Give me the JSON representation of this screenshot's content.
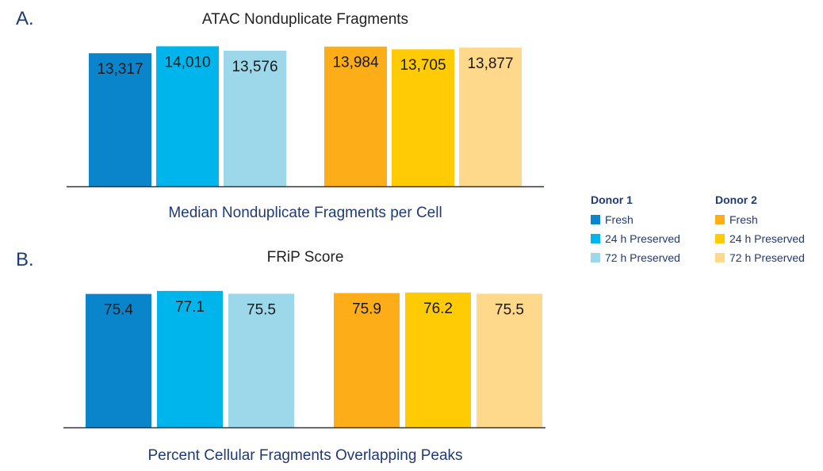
{
  "chart_data": [
    {
      "type": "bar",
      "panel": "A.",
      "title": "ATAC Nonduplicate Fragments",
      "xlabel": "Median Nonduplicate Fragments per Cell",
      "categories": [
        "Fresh",
        "24 h Preserved",
        "72 h Preserved"
      ],
      "groups": [
        "Donor 1",
        "Donor 2"
      ],
      "series": [
        {
          "group": "Donor 1",
          "values": [
            13317,
            14010,
            13576
          ],
          "labels": [
            "13,317",
            "14,010",
            "13,576"
          ]
        },
        {
          "group": "Donor 2",
          "values": [
            13984,
            13705,
            13877
          ],
          "labels": [
            "13,984",
            "13,705",
            "13,877"
          ]
        }
      ],
      "ylim": [
        0,
        14200
      ],
      "grid": false
    },
    {
      "type": "bar",
      "panel": "B.",
      "title": "FRiP Score",
      "xlabel": "Percent Cellular Fragments Overlapping Peaks",
      "categories": [
        "Fresh",
        "24 h Preserved",
        "72 h Preserved"
      ],
      "groups": [
        "Donor 1",
        "Donor 2"
      ],
      "series": [
        {
          "group": "Donor 1",
          "values": [
            75.4,
            77.1,
            75.5
          ],
          "labels": [
            "75.4",
            "77.1",
            "75.5"
          ]
        },
        {
          "group": "Donor 2",
          "values": [
            75.9,
            76.2,
            75.5
          ],
          "labels": [
            "75.9",
            "76.2",
            "75.5"
          ]
        }
      ],
      "ylim": [
        0,
        77.5
      ],
      "grid": false
    }
  ],
  "legend": {
    "placement": "right",
    "groups": [
      {
        "title": "Donor 1",
        "items": [
          {
            "label": "Fresh",
            "color": "#0a85cc"
          },
          {
            "label": "24 h Preserved",
            "color": "#00b4ec"
          },
          {
            "label": "72 h Preserved",
            "color": "#9cd8ea"
          }
        ]
      },
      {
        "title": "Donor 2",
        "items": [
          {
            "label": "Fresh",
            "color": "#fcad18"
          },
          {
            "label": "24 h Preserved",
            "color": "#ffcb05"
          },
          {
            "label": "72 h Preserved",
            "color": "#fed88b"
          }
        ]
      }
    ]
  }
}
